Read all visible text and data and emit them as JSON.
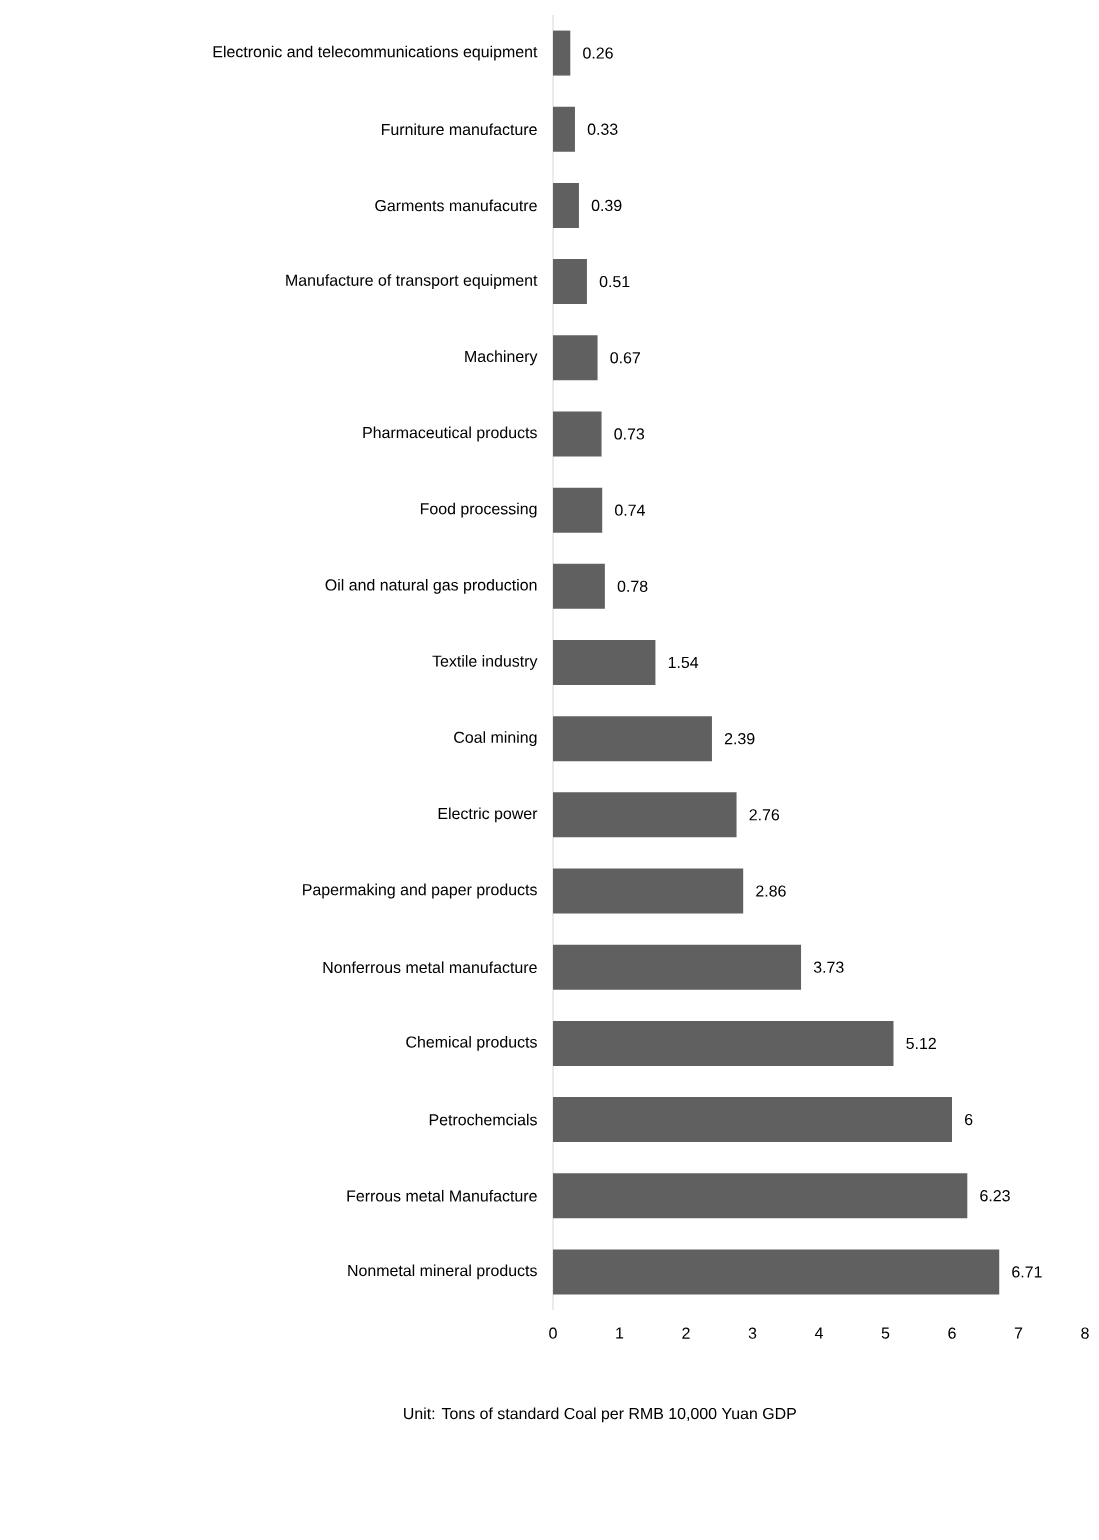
{
  "chart_data": {
    "type": "bar",
    "orientation": "horizontal",
    "xlabel": "Unit: Tons of standard Coal per RMB 10,000 Yuan GDP",
    "categories": [
      "Electronic and telecommunications equipment",
      "Furniture manufacture",
      "Garments manufacutre",
      "Manufacture of transport equipment",
      "Machinery",
      "Pharmaceutical products",
      "Food processing",
      "Oil and natural gas production",
      "Textile industry",
      "Coal mining",
      "Electric power",
      "Papermaking and paper products",
      "Nonferrous metal manufacture",
      "Chemical products",
      "Petrochemcials",
      "Ferrous metal Manufacture",
      "Nonmetal mineral products"
    ],
    "values": [
      0.26,
      0.33,
      0.39,
      0.51,
      0.67,
      0.73,
      0.74,
      0.78,
      1.54,
      2.39,
      2.76,
      2.86,
      3.73,
      5.12,
      6,
      6.23,
      6.71
    ],
    "color": "#606060",
    "data_labels": true,
    "grid": false,
    "xlim": [
      0,
      8
    ],
    "xticks": [
      0,
      1,
      2,
      3,
      4,
      5,
      6,
      7,
      8
    ]
  }
}
